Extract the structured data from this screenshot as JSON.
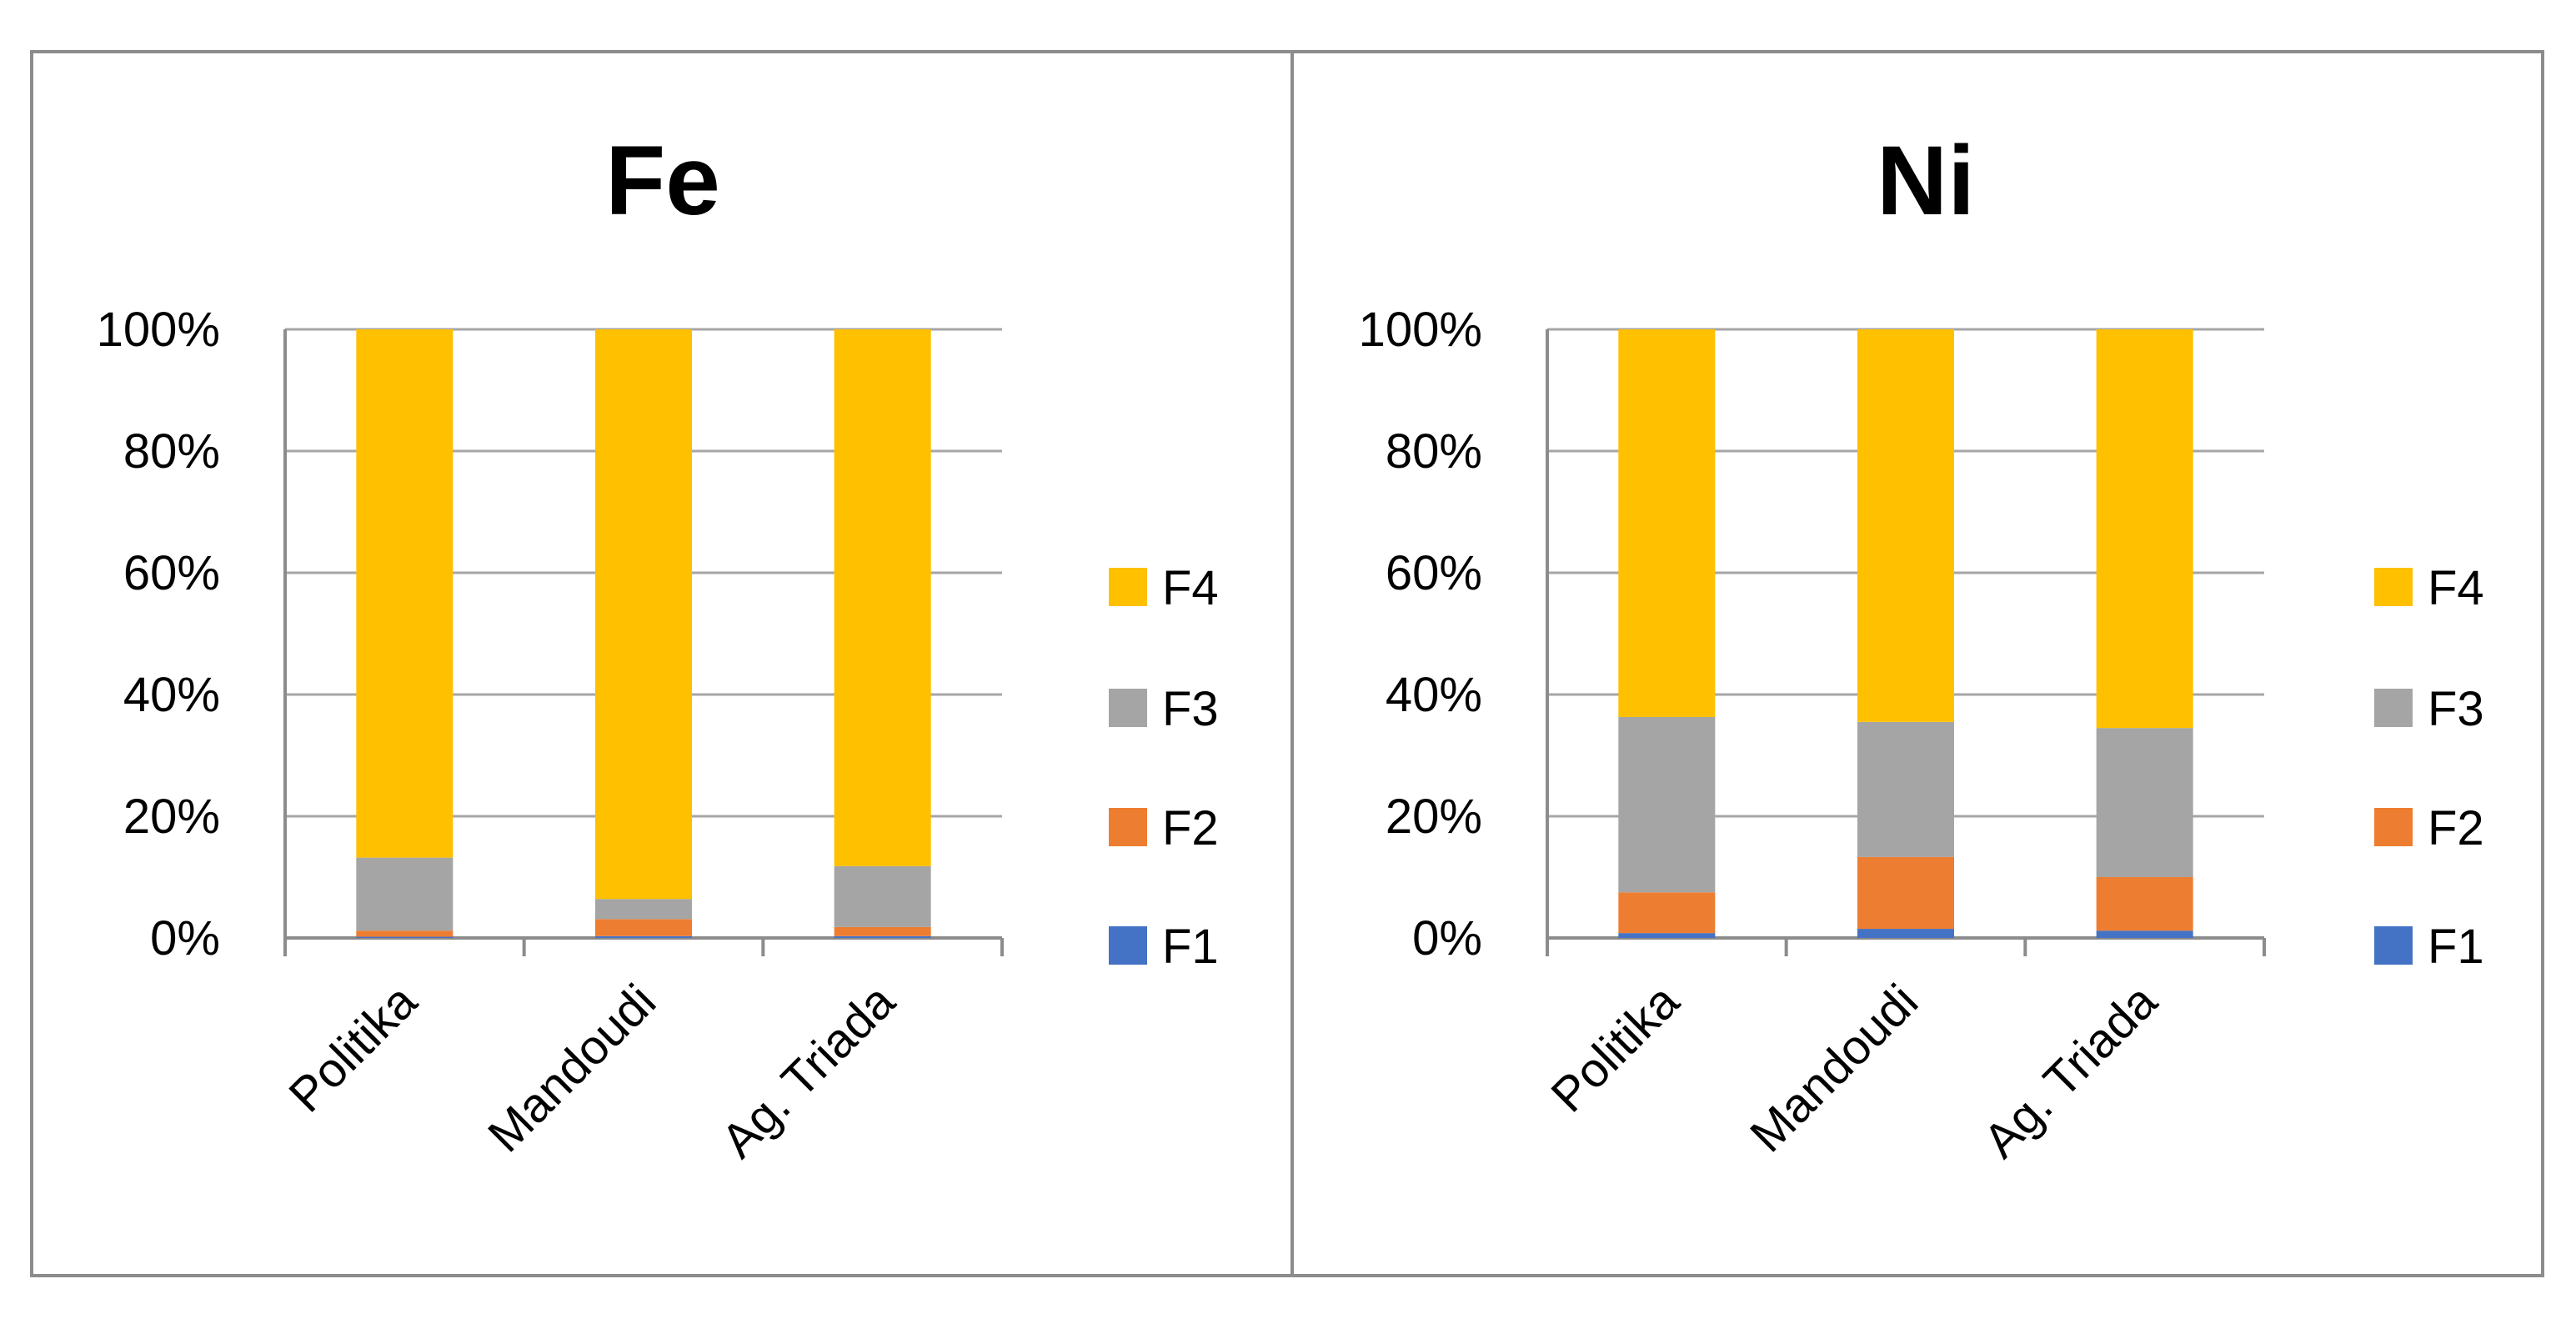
{
  "chart_data": [
    {
      "type": "bar",
      "stacked": "percent",
      "title": "Fe",
      "categories": [
        "Politika",
        "Mandoudi",
        "Ag. Triada"
      ],
      "series": [
        {
          "name": "F1",
          "color": "#4472C4",
          "values": [
            0.2,
            0.3,
            0.3
          ]
        },
        {
          "name": "F2",
          "color": "#ED7D31",
          "values": [
            1.0,
            2.8,
            1.5
          ]
        },
        {
          "name": "F3",
          "color": "#A5A5A5",
          "values": [
            12.0,
            3.3,
            10.0
          ]
        },
        {
          "name": "F4",
          "color": "#FFC000",
          "values": [
            86.8,
            93.6,
            88.2
          ]
        }
      ],
      "yticks": [
        "0%",
        "20%",
        "40%",
        "60%",
        "80%",
        "100%"
      ],
      "ylim": [
        0,
        100
      ],
      "grid": true,
      "legend": "right"
    },
    {
      "type": "bar",
      "stacked": "percent",
      "title": "Ni",
      "categories": [
        "Politika",
        "Mandoudi",
        "Ag. Triada"
      ],
      "series": [
        {
          "name": "F1",
          "color": "#4472C4",
          "values": [
            0.8,
            1.5,
            1.2
          ]
        },
        {
          "name": "F2",
          "color": "#ED7D31",
          "values": [
            6.7,
            11.8,
            8.8
          ]
        },
        {
          "name": "F3",
          "color": "#A5A5A5",
          "values": [
            28.8,
            22.2,
            24.5
          ]
        },
        {
          "name": "F4",
          "color": "#FFC000",
          "values": [
            63.7,
            64.5,
            65.5
          ]
        }
      ],
      "yticks": [
        "0%",
        "20%",
        "40%",
        "60%",
        "80%",
        "100%"
      ],
      "ylim": [
        0,
        100
      ],
      "grid": true,
      "legend": "right"
    }
  ]
}
